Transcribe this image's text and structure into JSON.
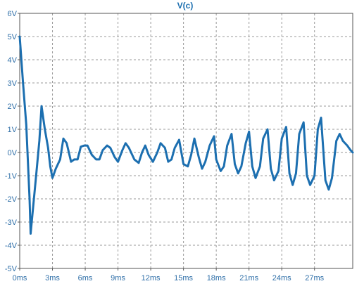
{
  "chart_data": {
    "type": "line",
    "title": "V(c)",
    "xlabel": "",
    "ylabel": "",
    "xlim": [
      0,
      30.5
    ],
    "ylim": [
      -5,
      6
    ],
    "x_unit": "ms",
    "y_unit": "V",
    "grid": true,
    "xticks": [
      0,
      3,
      6,
      9,
      12,
      15,
      18,
      21,
      24,
      27
    ],
    "xtick_labels": [
      "0ms",
      "3ms",
      "6ms",
      "9ms",
      "12ms",
      "15ms",
      "18ms",
      "21ms",
      "24ms",
      "27ms"
    ],
    "yticks": [
      6,
      5,
      4,
      3,
      2,
      1,
      0,
      -1,
      -2,
      -3,
      -4,
      -5
    ],
    "ytick_labels": [
      "6V",
      "5V",
      "4V",
      "3V",
      "2V",
      "1V",
      "0V",
      "-1V",
      "-2V",
      "-3V",
      "-4V",
      "-5V"
    ],
    "colors": {
      "line": "#1c6fb0",
      "grid": "#9a9a9a",
      "axis": "#555555",
      "tick_text": "#2f6fa8",
      "title_text": "#1c6fb0"
    },
    "series": [
      {
        "name": "V(c)",
        "x": [
          0,
          0.3,
          0.6,
          0.9,
          1.0,
          1.2,
          1.5,
          1.8,
          2.0,
          2.3,
          2.6,
          2.8,
          3.0,
          3.3,
          3.7,
          4.0,
          4.3,
          4.7,
          5.0,
          5.3,
          5.6,
          5.9,
          6.2,
          6.6,
          7.0,
          7.3,
          7.6,
          8.0,
          8.3,
          8.7,
          9.0,
          9.4,
          9.7,
          10.0,
          10.5,
          10.9,
          11.2,
          11.5,
          11.8,
          12.2,
          12.6,
          12.9,
          13.3,
          13.6,
          13.9,
          14.2,
          14.6,
          15.0,
          15.4,
          15.7,
          16.0,
          16.4,
          16.7,
          17.0,
          17.4,
          17.8,
          18.0,
          18.4,
          18.7,
          19.0,
          19.4,
          19.7,
          20.0,
          20.3,
          20.7,
          21.0,
          21.3,
          21.6,
          22.0,
          22.3,
          22.7,
          23.0,
          23.3,
          23.7,
          24.0,
          24.4,
          24.7,
          25.0,
          25.3,
          25.6,
          26.0,
          26.3,
          26.6,
          27.0,
          27.3,
          27.6,
          28.0,
          28.3,
          28.6,
          29.0,
          29.3,
          29.6,
          30.0,
          30.3,
          30.5
        ],
        "values": [
          5.0,
          3.0,
          1.2,
          -2.0,
          -3.5,
          -2.5,
          -1.0,
          0.5,
          2.0,
          1.0,
          0.2,
          -0.6,
          -1.1,
          -0.7,
          -0.3,
          0.6,
          0.4,
          -0.4,
          -0.3,
          -0.3,
          0.25,
          0.3,
          0.3,
          -0.1,
          -0.3,
          -0.3,
          0.1,
          0.3,
          0.2,
          -0.2,
          -0.4,
          0.1,
          0.4,
          0.2,
          -0.3,
          -0.45,
          0.0,
          0.3,
          -0.1,
          -0.4,
          0.0,
          0.4,
          0.2,
          -0.4,
          -0.3,
          0.2,
          0.55,
          -0.5,
          -0.6,
          -0.1,
          0.6,
          -0.2,
          -0.7,
          -0.4,
          0.3,
          0.7,
          -0.3,
          -0.8,
          -0.6,
          0.3,
          0.8,
          -0.5,
          -0.9,
          -0.6,
          0.4,
          0.9,
          -0.6,
          -1.1,
          -0.6,
          0.6,
          1.0,
          -0.7,
          -1.2,
          -0.8,
          0.6,
          1.1,
          -0.9,
          -1.4,
          -0.9,
          0.8,
          1.3,
          -1.0,
          -1.4,
          -1.0,
          1.0,
          1.5,
          -1.2,
          -1.6,
          -1.1,
          0.5,
          0.8,
          0.5,
          0.3,
          0.1,
          0.0
        ]
      }
    ]
  }
}
